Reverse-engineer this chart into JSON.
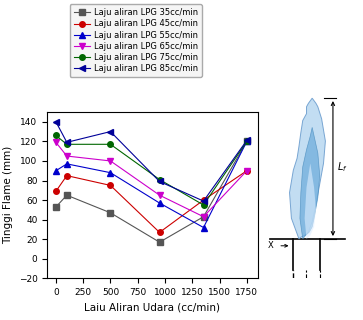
{
  "title": "",
  "xlabel": "Laiu Aliran Udara (cc/min)",
  "ylabel": "Tinggi Flame (mm)",
  "xlim": [
    -80,
    1850
  ],
  "ylim": [
    -20,
    150
  ],
  "xticks": [
    0,
    250,
    500,
    750,
    1000,
    1250,
    1500,
    1750
  ],
  "yticks": [
    -20,
    0,
    20,
    40,
    60,
    80,
    100,
    120,
    140
  ],
  "series": [
    {
      "label": "Laju aliran LPG 35cc/min",
      "color": "#555555",
      "marker": "s",
      "markersize": 4,
      "x": [
        0,
        100,
        500,
        950,
        1353,
        1750
      ],
      "y": [
        53,
        65,
        47,
        17,
        43,
        120
      ]
    },
    {
      "label": "Laju aliran LPG 45cc/min",
      "color": "#cc0000",
      "marker": "o",
      "markersize": 4,
      "x": [
        0,
        100,
        500,
        950,
        1353,
        1750
      ],
      "y": [
        69,
        85,
        75,
        27,
        60,
        90
      ]
    },
    {
      "label": "Laju aliran LPG 55cc/min",
      "color": "#0000cc",
      "marker": "^",
      "markersize": 4,
      "x": [
        0,
        100,
        500,
        950,
        1353,
        1750
      ],
      "y": [
        90,
        97,
        88,
        57,
        32,
        120
      ]
    },
    {
      "label": "Laju aliran LPG 65cc/min",
      "color": "#cc00cc",
      "marker": "v",
      "markersize": 4,
      "x": [
        0,
        100,
        500,
        950,
        1353,
        1750
      ],
      "y": [
        119,
        105,
        100,
        65,
        43,
        90
      ]
    },
    {
      "label": "Laju aliran LPG 75cc/min",
      "color": "#006600",
      "marker": "o",
      "markersize": 4,
      "x": [
        0,
        100,
        500,
        950,
        1353,
        1750
      ],
      "y": [
        126,
        117,
        117,
        81,
        55,
        120
      ]
    },
    {
      "label": "Laju aliran LPG 85cc/min",
      "color": "#000099",
      "marker": "<",
      "markersize": 4,
      "x": [
        0,
        100,
        500,
        950,
        1353,
        1750
      ],
      "y": [
        140,
        119,
        130,
        79,
        59,
        121
      ]
    }
  ],
  "legend_fontsize": 6.0,
  "axis_fontsize": 7.5,
  "tick_fontsize": 6.5,
  "figsize": [
    3.63,
    3.2
  ],
  "dpi": 100
}
